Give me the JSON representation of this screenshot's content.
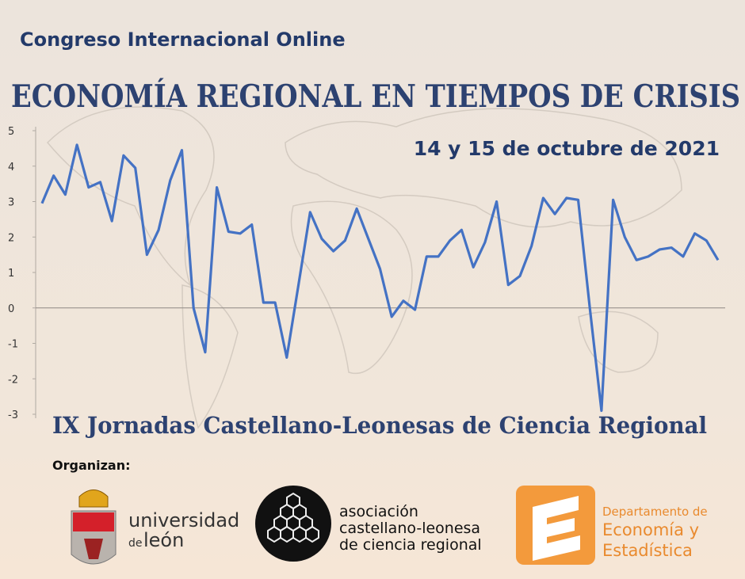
{
  "header": {
    "event": "Congreso Internacional Online",
    "title": "ECONOMÍA REGIONAL EN TIEMPOS DE CRISIS",
    "date": "14 y 15 de octubre de 2021",
    "subtitle": "IX Jornadas Castellano-Leonesas de Ciencia Regional"
  },
  "chart_data": {
    "type": "line",
    "color": "#4472c4",
    "categories": [
      null,
      null,
      null,
      null,
      null,
      null,
      null,
      null,
      null,
      null,
      null,
      null,
      null,
      null,
      null,
      null,
      null,
      null,
      null,
      null,
      null,
      null,
      null,
      null,
      null,
      null,
      null,
      null,
      null,
      null,
      null,
      null,
      null,
      null,
      null,
      null,
      null,
      null,
      null,
      null,
      null,
      null,
      null,
      null,
      null,
      null,
      null,
      null,
      null,
      null,
      null,
      null,
      null,
      null,
      null,
      null,
      null,
      null,
      null
    ],
    "values": [
      2.95,
      3.73,
      3.2,
      4.6,
      3.4,
      3.55,
      2.45,
      4.3,
      3.95,
      1.5,
      2.2,
      3.6,
      4.45,
      0,
      -1.25,
      3.4,
      2.15,
      2.1,
      2.35,
      0.15,
      0.15,
      -1.4,
      0.65,
      2.7,
      1.95,
      1.6,
      1.9,
      2.8,
      1.95,
      1.1,
      -0.25,
      0.2,
      -0.05,
      1.45,
      1.45,
      1.9,
      2.2,
      1.15,
      1.85,
      3.0,
      0.65,
      0.9,
      1.75,
      3.1,
      2.65,
      3.1,
      3.05,
      0,
      -2.9,
      3.05,
      2.0,
      1.35,
      1.45,
      1.65,
      1.7,
      1.45,
      2.1,
      1.9,
      1.35
    ],
    "ylim": [
      -3,
      5
    ],
    "yticks": [
      -3,
      -2,
      -1,
      0,
      1,
      2,
      3,
      4,
      5
    ]
  },
  "organizers": {
    "label": "Organizan:",
    "items": [
      {
        "lines": [
          "universidad",
          "de",
          "león"
        ]
      },
      {
        "lines": [
          "asociación",
          "castellano-leonesa",
          "de ciencia regional"
        ]
      },
      {
        "lines": [
          "Departamento de",
          "Economía y",
          "Estadística"
        ]
      }
    ]
  }
}
